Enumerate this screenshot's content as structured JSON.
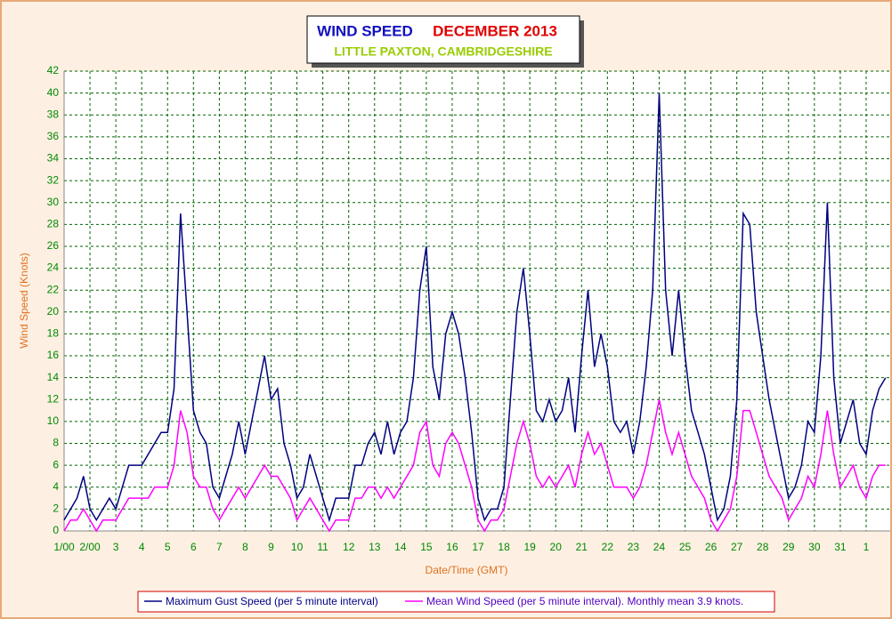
{
  "chart_data": {
    "type": "line",
    "title": "WIND SPEED",
    "title_month": "DECEMBER 2013",
    "subtitle": "LITTLE PAXTON, CAMBRIDGESHIRE",
    "y_label": "Wind Speed (Knots)",
    "x_label": "Date/Time (GMT)",
    "grid": true,
    "xlim": [
      1,
      32.93
    ],
    "ylim": [
      0,
      42
    ],
    "yticks": [
      0,
      2,
      4,
      6,
      8,
      10,
      12,
      14,
      16,
      18,
      20,
      22,
      24,
      26,
      28,
      30,
      32,
      34,
      36,
      38,
      40,
      42
    ],
    "xticks": [
      {
        "value": 1,
        "label": "1/00"
      },
      {
        "value": 2,
        "label": "2/00"
      },
      3,
      4,
      5,
      6,
      7,
      8,
      9,
      10,
      11,
      12,
      13,
      14,
      15,
      16,
      17,
      18,
      19,
      20,
      21,
      22,
      23,
      24,
      25,
      26,
      27,
      28,
      29,
      30,
      31,
      {
        "value": 32,
        "label": "1"
      }
    ],
    "x": [
      1,
      1.25,
      1.5,
      1.75,
      2,
      2.25,
      2.5,
      2.75,
      3,
      3.25,
      3.5,
      3.75,
      4,
      4.25,
      4.5,
      4.75,
      5,
      5.25,
      5.5,
      5.75,
      6,
      6.25,
      6.5,
      6.75,
      7,
      7.25,
      7.5,
      7.75,
      8,
      8.25,
      8.5,
      8.75,
      9,
      9.25,
      9.5,
      9.75,
      10,
      10.25,
      10.5,
      10.75,
      11,
      11.25,
      11.5,
      11.75,
      12,
      12.25,
      12.5,
      12.75,
      13,
      13.25,
      13.5,
      13.75,
      14,
      14.25,
      14.5,
      14.75,
      15,
      15.25,
      15.5,
      15.75,
      16,
      16.25,
      16.5,
      16.75,
      17,
      17.25,
      17.5,
      17.75,
      18,
      18.25,
      18.5,
      18.75,
      19,
      19.25,
      19.5,
      19.75,
      20,
      20.25,
      20.5,
      20.75,
      21,
      21.25,
      21.5,
      21.75,
      22,
      22.25,
      22.5,
      22.75,
      23,
      23.25,
      23.5,
      23.75,
      24,
      24.25,
      24.5,
      24.75,
      25,
      25.25,
      25.5,
      25.75,
      26,
      26.25,
      26.5,
      26.75,
      27,
      27.25,
      27.5,
      27.75,
      28,
      28.25,
      28.5,
      28.75,
      29,
      29.25,
      29.5,
      29.75,
      30,
      30.25,
      30.5,
      30.75,
      31,
      31.25,
      31.5,
      31.75,
      32,
      32.25,
      32.5,
      32.75
    ],
    "series": [
      {
        "name": "Maximum Gust Speed (per 5 minute interval)",
        "color": "#000080",
        "values": [
          1,
          2,
          3,
          5,
          2,
          1,
          2,
          3,
          2,
          4,
          6,
          6,
          6,
          7,
          8,
          9,
          9,
          13,
          29,
          20,
          11,
          9,
          8,
          4,
          3,
          5,
          7,
          10,
          7,
          10,
          13,
          16,
          12,
          13,
          8,
          6,
          3,
          4,
          7,
          5,
          3,
          1,
          3,
          3,
          3,
          6,
          6,
          8,
          9,
          7,
          10,
          7,
          9,
          10,
          14,
          22,
          26,
          15,
          12,
          18,
          20,
          18,
          14,
          9,
          3,
          1,
          2,
          2,
          4,
          12,
          20,
          24,
          18,
          11,
          10,
          12,
          10,
          11,
          14,
          9,
          16,
          22,
          15,
          18,
          15,
          10,
          9,
          10,
          7,
          10,
          15,
          22,
          40,
          22,
          16,
          22,
          16,
          11,
          9,
          7,
          4,
          1,
          2,
          5,
          12,
          29,
          28,
          20,
          16,
          12,
          9,
          6,
          3,
          4,
          6,
          10,
          9,
          16,
          30,
          14,
          8,
          10,
          12,
          8,
          7,
          11,
          13,
          14
        ]
      },
      {
        "name": "Mean Wind Speed (per 5 minute interval). Monthly mean 3.9 knots.",
        "color": "#ff00ff",
        "values": [
          0,
          1,
          1,
          2,
          1,
          0,
          1,
          1,
          1,
          2,
          3,
          3,
          3,
          3,
          4,
          4,
          4,
          6,
          11,
          9,
          5,
          4,
          4,
          2,
          1,
          2,
          3,
          4,
          3,
          4,
          5,
          6,
          5,
          5,
          4,
          3,
          1,
          2,
          3,
          2,
          1,
          0,
          1,
          1,
          1,
          3,
          3,
          4,
          4,
          3,
          4,
          3,
          4,
          5,
          6,
          9,
          10,
          6,
          5,
          8,
          9,
          8,
          6,
          4,
          1,
          0,
          1,
          1,
          2,
          5,
          8,
          10,
          8,
          5,
          4,
          5,
          4,
          5,
          6,
          4,
          7,
          9,
          7,
          8,
          6,
          4,
          4,
          4,
          3,
          4,
          6,
          9,
          12,
          9,
          7,
          9,
          7,
          5,
          4,
          3,
          1,
          0,
          1,
          2,
          5,
          11,
          11,
          9,
          7,
          5,
          4,
          3,
          1,
          2,
          3,
          5,
          4,
          7,
          11,
          7,
          4,
          5,
          6,
          4,
          3,
          5,
          6,
          6
        ]
      }
    ]
  }
}
